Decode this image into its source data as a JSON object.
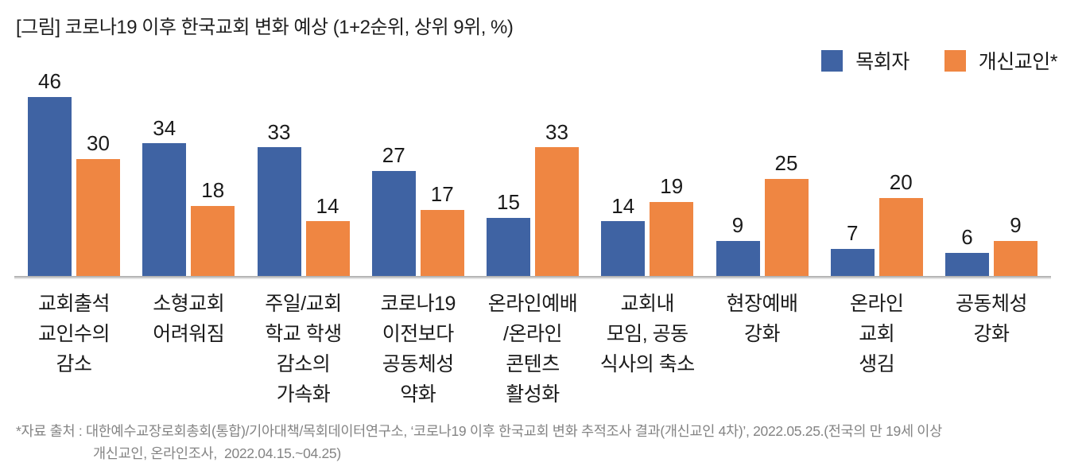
{
  "title": "[그림] 코로나19 이후 한국교회 변화 예상 (1+2순위, 상위 9위, %)",
  "legend": {
    "items": [
      {
        "label": "목회자",
        "color": "#3F63A3"
      },
      {
        "label": "개신교인*",
        "color": "#EF8642"
      }
    ]
  },
  "chart_data": {
    "type": "bar",
    "title": "[그림] 코로나19 이후 한국교회 변화 예상 (1+2순위, 상위 9위, %)",
    "unit": "%",
    "ylim": [
      0,
      50
    ],
    "grid": false,
    "value_labels": true,
    "legend_position": "top-right",
    "categories": [
      "교회출석 교인수의 감소",
      "소형교회 어려워짐",
      "주일/교회 학교 학생 감소의 가속화",
      "코로나19 이전보다 공동체성 약화",
      "온라인예배/온라인 콘텐츠 활성화",
      "교회내 모임, 공동 식사의 축소",
      "현장예배 강화",
      "온라인 교회 생김",
      "공동체성 강화"
    ],
    "category_lines": [
      [
        "교회출석",
        "교인수의",
        "감소"
      ],
      [
        "소형교회",
        "어려워짐"
      ],
      [
        "주일/교회",
        "학교 학생",
        "감소의",
        "가속화"
      ],
      [
        "코로나19",
        "이전보다",
        "공동체성",
        "약화"
      ],
      [
        "온라인예배",
        "/온라인",
        "콘텐츠",
        "활성화"
      ],
      [
        "교회내",
        "모임, 공동",
        "식사의 축소"
      ],
      [
        "현장예배",
        "강화"
      ],
      [
        "온라인",
        "교회",
        "생김"
      ],
      [
        "공동체성",
        "강화"
      ]
    ],
    "series": [
      {
        "name": "목회자",
        "color": "#3F63A3",
        "values": [
          46,
          34,
          33,
          27,
          15,
          14,
          9,
          7,
          6
        ]
      },
      {
        "name": "개신교인*",
        "color": "#EF8642",
        "values": [
          30,
          18,
          14,
          17,
          33,
          19,
          25,
          20,
          9
        ]
      }
    ]
  },
  "footnote": {
    "line1": "*자료 출처 : 대한예수교장로회총회(통합)/기아대책/목회데이터연구소, ‘코로나19 이후 한국교회 변화 추적조사 결과(개신교인 4차)’, 2022.05.25.(전국의 만 19세 이상",
    "line2": "개신교인, 온라인조사,  2022.04.15.~04.25)"
  }
}
